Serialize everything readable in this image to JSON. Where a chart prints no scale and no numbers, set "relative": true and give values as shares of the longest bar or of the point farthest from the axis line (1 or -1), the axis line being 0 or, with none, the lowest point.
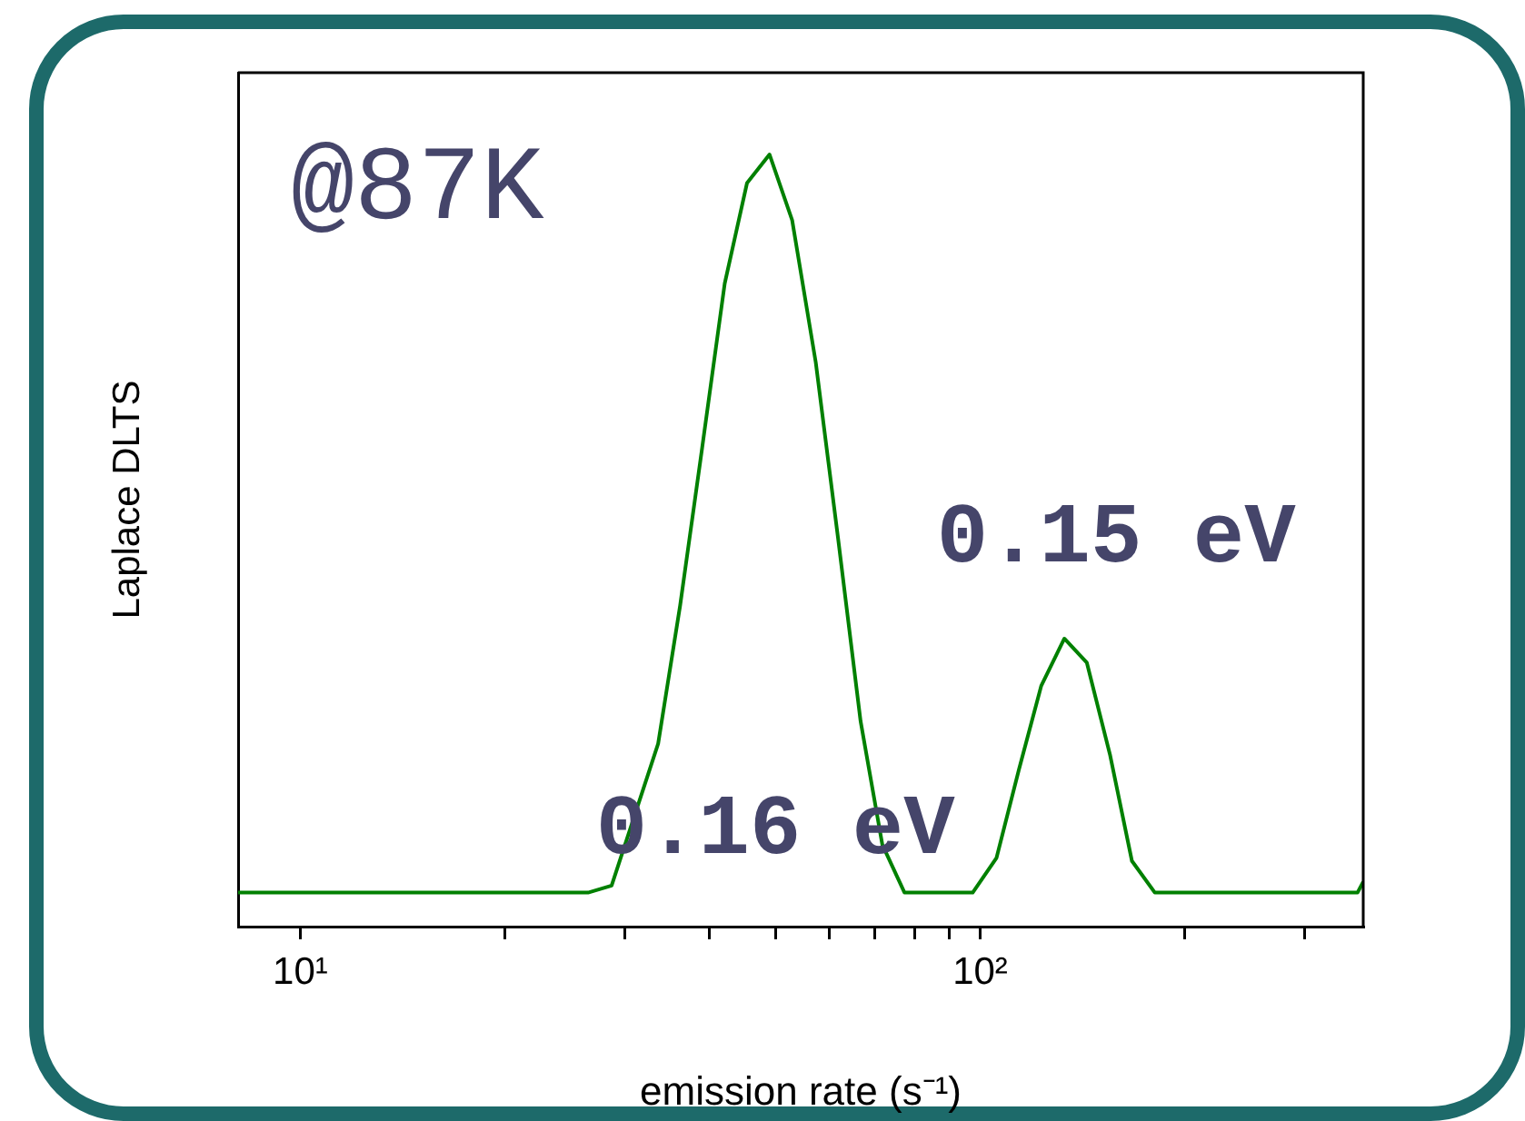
{
  "chart_data": {
    "type": "line",
    "relative": true,
    "xlabel": "emission rate (s⁻¹)",
    "ylabel": "Laplace DLTS",
    "log": "x",
    "xlim": [
      8.1,
      366
    ],
    "xticks": [
      {
        "value": 10,
        "label": "10¹"
      },
      {
        "value": 20,
        "label": null
      },
      {
        "value": 30,
        "label": null
      },
      {
        "value": 40,
        "label": null
      },
      {
        "value": 50,
        "label": null
      },
      {
        "value": 60,
        "label": null
      },
      {
        "value": 70,
        "label": null
      },
      {
        "value": 80,
        "label": null
      },
      {
        "value": 90,
        "label": null
      },
      {
        "value": 100,
        "label": "10²"
      },
      {
        "value": 200,
        "label": null
      },
      {
        "value": 300,
        "label": null
      }
    ],
    "x": [
      8.1,
      26.5,
      28.7,
      33.6,
      36.2,
      39.0,
      42.1,
      45.4,
      49.0,
      52.9,
      57.3,
      61.8,
      66.7,
      71.8,
      77.4,
      97.5,
      105.7,
      114.0,
      123.0,
      133.0,
      143.5,
      155.2,
      167.2,
      180.7,
      359,
      366
    ],
    "series": [
      {
        "color": "#008000",
        "values": [
          0.044,
          0.044,
          0.053,
          0.237,
          0.416,
          0.62,
          0.833,
          0.963,
          1,
          0.915,
          0.731,
          0.503,
          0.266,
          0.106,
          0.044,
          0.044,
          0.089,
          0.203,
          0.312,
          0.373,
          0.342,
          0.223,
          0.085,
          0.044,
          0.044,
          0.058
        ]
      }
    ],
    "annotations": [
      "@87K",
      "0.16 eV",
      "0.15 eV"
    ],
    "grid": false,
    "legend": false,
    "marker": "none",
    "line_style": "solid"
  }
}
